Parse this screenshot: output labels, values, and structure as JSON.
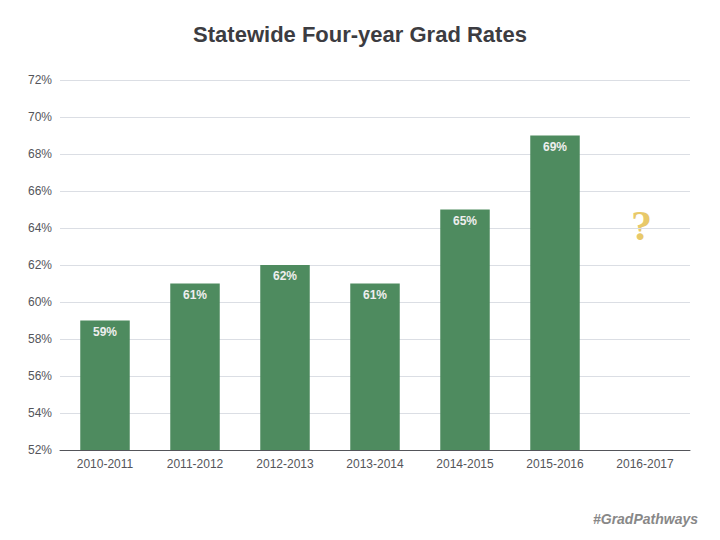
{
  "chart_data": {
    "type": "bar",
    "title": "Statewide Four-year Grad Rates",
    "categories": [
      "2010-2011",
      "2011-2012",
      "2012-2013",
      "2013-2014",
      "2014-2015",
      "2015-2016",
      "2016-2017"
    ],
    "values": [
      59,
      61,
      62,
      61,
      65,
      69,
      null
    ],
    "value_labels": [
      "59%",
      "61%",
      "62%",
      "61%",
      "65%",
      "69%",
      null
    ],
    "color": "#4e8b5f",
    "ylim": [
      52,
      72
    ],
    "yticks": [
      {
        "value": 52,
        "label": "52%"
      },
      {
        "value": 54,
        "label": "54%"
      },
      {
        "value": 56,
        "label": "56%"
      },
      {
        "value": 58,
        "label": "58%"
      },
      {
        "value": 60,
        "label": "60%"
      },
      {
        "value": 62,
        "label": "62%"
      },
      {
        "value": 64,
        "label": "64%"
      },
      {
        "value": 66,
        "label": "66%"
      },
      {
        "value": 68,
        "label": "68%"
      },
      {
        "value": 70,
        "label": "70%"
      },
      {
        "value": 72,
        "label": "72%"
      }
    ],
    "grid": true,
    "data_labels": true,
    "annotations": [
      "?",
      "#GradPathways"
    ]
  }
}
